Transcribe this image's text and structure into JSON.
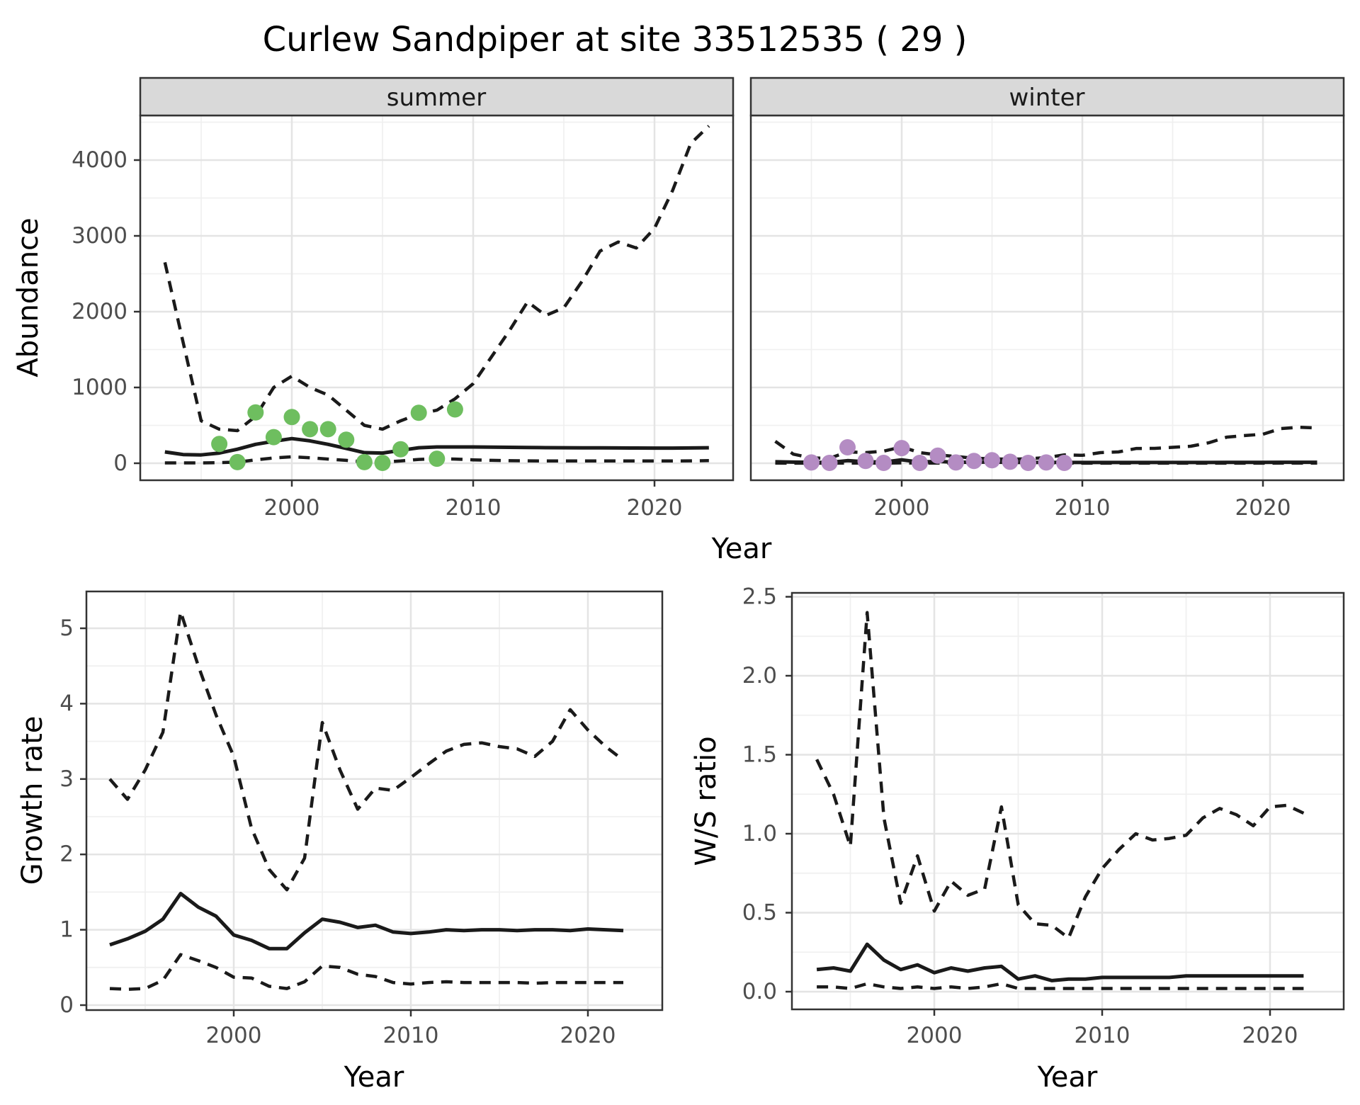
{
  "title": "Curlew Sandpiper at site 33512535 ( 29 )",
  "colors": {
    "summer_points": "#6EBE5F",
    "winter_points": "#B48CC3",
    "line": "#1A1A1A",
    "strip_bg": "#D9D9D9",
    "panel_border": "#333333",
    "grid_major": "#E4E4E4",
    "grid_minor": "#F0F0F0",
    "tick_text": "#4D4D4D"
  },
  "chart_data": [
    {
      "type": "line",
      "facet_label": "summer",
      "ylabel": "Abundance",
      "xlabel": "Year",
      "x_ticks": [
        2000,
        2010,
        2020
      ],
      "x_minor": [
        1995,
        2005,
        2015
      ],
      "y_ticks": [
        0,
        1000,
        2000,
        3000,
        4000
      ],
      "y_minor": [
        500,
        1500,
        2500,
        3500,
        4500
      ],
      "ylim": [
        -220,
        4580
      ],
      "grid": true,
      "years": [
        1993,
        1994,
        1995,
        1996,
        1997,
        1998,
        1999,
        2000,
        2001,
        2002,
        2003,
        2004,
        2005,
        2006,
        2007,
        2008,
        2009,
        2010,
        2011,
        2012,
        2013,
        2014,
        2015,
        2016,
        2017,
        2018,
        2019,
        2020,
        2021,
        2022,
        2023
      ],
      "series": [
        {
          "name": "upper_ci",
          "style": "dashed",
          "values": [
            2650,
            1600,
            560,
            450,
            430,
            620,
            1000,
            1150,
            1000,
            900,
            700,
            500,
            450,
            560,
            650,
            700,
            850,
            1050,
            1400,
            1750,
            2130,
            1950,
            2050,
            2400,
            2800,
            2920,
            2840,
            3100,
            3600,
            4220,
            4450
          ]
        },
        {
          "name": "mean",
          "style": "solid",
          "values": [
            150,
            115,
            110,
            135,
            185,
            250,
            290,
            325,
            295,
            250,
            195,
            140,
            135,
            170,
            205,
            215,
            215,
            215,
            212,
            210,
            208,
            206,
            205,
            204,
            203,
            202,
            201,
            200,
            200,
            202,
            205
          ]
        },
        {
          "name": "lower_ci",
          "style": "dashed",
          "values": [
            5,
            5,
            5,
            8,
            15,
            45,
            70,
            85,
            72,
            55,
            38,
            20,
            15,
            30,
            50,
            62,
            55,
            45,
            38,
            34,
            32,
            30,
            30,
            30,
            30,
            30,
            30,
            30,
            30,
            32,
            35
          ]
        }
      ],
      "points": {
        "name": "observed-counts",
        "years": [
          1996,
          1997,
          1998,
          1999,
          2000,
          2001,
          2002,
          2003,
          2004,
          2005,
          2006,
          2007,
          2008,
          2009
        ],
        "values": [
          255,
          15,
          670,
          345,
          610,
          450,
          450,
          310,
          15,
          5,
          185,
          665,
          60,
          710
        ]
      }
    },
    {
      "type": "line",
      "facet_label": "winter",
      "ylabel": "",
      "xlabel": "Year",
      "x_ticks": [
        2000,
        2010,
        2020
      ],
      "x_minor": [
        1995,
        2005,
        2015
      ],
      "y_ticks": [
        0,
        1000,
        2000,
        3000,
        4000
      ],
      "y_minor": [
        500,
        1500,
        2500,
        3500,
        4500
      ],
      "ylim": [
        -220,
        4580
      ],
      "grid": true,
      "years": [
        1993,
        1994,
        1995,
        1996,
        1997,
        1998,
        1999,
        2000,
        2001,
        2002,
        2003,
        2004,
        2005,
        2006,
        2007,
        2008,
        2009,
        2010,
        2011,
        2012,
        2013,
        2014,
        2015,
        2016,
        2017,
        2018,
        2019,
        2020,
        2021,
        2022,
        2023
      ],
      "series": [
        {
          "name": "upper_ci",
          "style": "dashed",
          "values": [
            290,
            120,
            70,
            65,
            150,
            140,
            160,
            215,
            140,
            110,
            90,
            65,
            60,
            52,
            60,
            75,
            110,
            105,
            140,
            150,
            195,
            196,
            210,
            224,
            270,
            345,
            365,
            383,
            458,
            475,
            465
          ]
        },
        {
          "name": "mean",
          "style": "solid",
          "values": [
            20,
            15,
            12,
            10,
            35,
            20,
            15,
            45,
            15,
            25,
            12,
            15,
            15,
            12,
            10,
            12,
            10,
            10,
            10,
            10,
            10,
            10,
            10,
            10,
            10,
            12,
            12,
            12,
            13,
            13,
            13
          ]
        },
        {
          "name": "lower_ci",
          "style": "dashed",
          "values": [
            2,
            1,
            1,
            1,
            3,
            2,
            2,
            5,
            2,
            3,
            1,
            1,
            1,
            1,
            1,
            1,
            1,
            1,
            1,
            1,
            1,
            1,
            1,
            1,
            1,
            1,
            1,
            1,
            2,
            2,
            2
          ]
        }
      ],
      "points": {
        "name": "observed-counts",
        "years": [
          1995,
          1996,
          1997,
          1998,
          1999,
          2000,
          2001,
          2002,
          2003,
          2004,
          2005,
          2006,
          2007,
          2008,
          2009
        ],
        "values": [
          10,
          5,
          210,
          30,
          5,
          200,
          5,
          100,
          10,
          30,
          40,
          20,
          5,
          10,
          5
        ]
      }
    },
    {
      "type": "line",
      "ylabel": "Growth rate",
      "xlabel": "Year",
      "x_ticks": [
        2000,
        2010,
        2020
      ],
      "x_minor": [
        1995,
        2005,
        2015
      ],
      "y_ticks": [
        0,
        1,
        2,
        3,
        4,
        5
      ],
      "y_minor": [
        0.5,
        1.5,
        2.5,
        3.5,
        4.5
      ],
      "ylim": [
        -0.05,
        5.45
      ],
      "grid": true,
      "years": [
        1993,
        1994,
        1995,
        1996,
        1997,
        1998,
        1999,
        2000,
        2001,
        2002,
        2003,
        2004,
        2005,
        2006,
        2007,
        2008,
        2009,
        2010,
        2011,
        2012,
        2013,
        2014,
        2015,
        2016,
        2017,
        2018,
        2019,
        2020,
        2021,
        2022
      ],
      "series": [
        {
          "name": "upper_ci",
          "style": "dashed",
          "values": [
            3.0,
            2.73,
            3.12,
            3.62,
            5.22,
            4.5,
            3.85,
            3.3,
            2.35,
            1.8,
            1.53,
            1.95,
            3.75,
            3.12,
            2.6,
            2.88,
            2.85,
            3.02,
            3.2,
            3.37,
            3.46,
            3.48,
            3.43,
            3.4,
            3.3,
            3.5,
            3.92,
            3.65,
            3.43,
            3.25
          ]
        },
        {
          "name": "mean",
          "style": "solid",
          "values": [
            0.8,
            0.88,
            0.98,
            1.14,
            1.48,
            1.3,
            1.18,
            0.93,
            0.86,
            0.75,
            0.75,
            0.96,
            1.14,
            1.1,
            1.03,
            1.06,
            0.97,
            0.95,
            0.97,
            1.0,
            0.99,
            1.0,
            1.0,
            0.99,
            1.0,
            1.0,
            0.99,
            1.01,
            1.0,
            0.99
          ]
        },
        {
          "name": "lower_ci",
          "style": "dashed",
          "values": [
            0.22,
            0.21,
            0.22,
            0.33,
            0.67,
            0.59,
            0.5,
            0.37,
            0.36,
            0.25,
            0.22,
            0.31,
            0.52,
            0.5,
            0.41,
            0.38,
            0.3,
            0.28,
            0.3,
            0.31,
            0.3,
            0.3,
            0.3,
            0.3,
            0.29,
            0.3,
            0.3,
            0.3,
            0.3,
            0.3
          ]
        }
      ]
    },
    {
      "type": "line",
      "ylabel": "W/S ratio",
      "xlabel": "Year",
      "x_ticks": [
        2000,
        2010,
        2020
      ],
      "x_minor": [
        1995,
        2005,
        2015
      ],
      "y_ticks": [
        0,
        0.5,
        1,
        1.5,
        2,
        2.5
      ],
      "y_tick_labels": [
        "0.0",
        "0.5",
        "1.0",
        "1.5",
        "2.0",
        "2.5"
      ],
      "y_minor": [
        0.25,
        0.75,
        1.25,
        1.75,
        2.25
      ],
      "ylim": [
        -0.11,
        2.52
      ],
      "grid": true,
      "years": [
        1993,
        1994,
        1995,
        1996,
        1997,
        1998,
        1999,
        2000,
        2001,
        2002,
        2003,
        2004,
        2005,
        2006,
        2007,
        2008,
        2009,
        2010,
        2011,
        2012,
        2013,
        2014,
        2015,
        2016,
        2017,
        2018,
        2019,
        2020,
        2021,
        2022
      ],
      "series": [
        {
          "name": "upper_ci",
          "style": "dashed",
          "values": [
            1.47,
            1.25,
            0.92,
            2.4,
            1.1,
            0.56,
            0.86,
            0.51,
            0.7,
            0.61,
            0.65,
            1.17,
            0.55,
            0.43,
            0.42,
            0.34,
            0.6,
            0.78,
            0.9,
            1.0,
            0.96,
            0.97,
            0.99,
            1.1,
            1.16,
            1.12,
            1.05,
            1.17,
            1.18,
            1.13
          ]
        },
        {
          "name": "mean",
          "style": "solid",
          "values": [
            0.14,
            0.15,
            0.13,
            0.3,
            0.2,
            0.14,
            0.17,
            0.12,
            0.15,
            0.13,
            0.15,
            0.16,
            0.08,
            0.1,
            0.07,
            0.08,
            0.08,
            0.09,
            0.09,
            0.09,
            0.09,
            0.09,
            0.1,
            0.1,
            0.1,
            0.1,
            0.1,
            0.1,
            0.1,
            0.1
          ]
        },
        {
          "name": "lower_ci",
          "style": "dashed",
          "values": [
            0.03,
            0.03,
            0.02,
            0.05,
            0.03,
            0.02,
            0.03,
            0.02,
            0.03,
            0.02,
            0.03,
            0.05,
            0.02,
            0.02,
            0.02,
            0.02,
            0.02,
            0.02,
            0.02,
            0.02,
            0.02,
            0.02,
            0.02,
            0.02,
            0.02,
            0.02,
            0.02,
            0.02,
            0.02,
            0.02
          ]
        }
      ]
    }
  ]
}
